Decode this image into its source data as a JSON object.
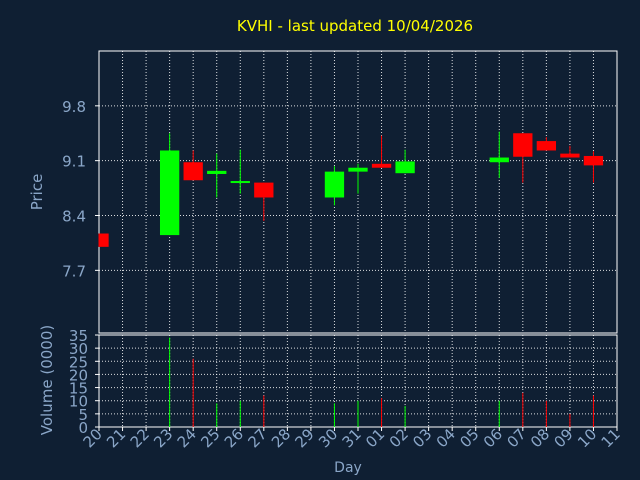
{
  "chart_data": {
    "type": "candlestick",
    "title": "KVHI - last updated 10/04/2026",
    "xlabel": "Day",
    "ylabel": "Price",
    "volume_label": "Volume (0000)",
    "x_ticks": [
      "20",
      "21",
      "22",
      "23",
      "24",
      "25",
      "26",
      "27",
      "28",
      "29",
      "30",
      "31",
      "01",
      "02",
      "03",
      "04",
      "05",
      "06",
      "07",
      "08",
      "09",
      "10",
      "11"
    ],
    "price_ticks": [
      7.7,
      8.4,
      9.1,
      9.8
    ],
    "price_ylim": [
      6.9,
      10.5
    ],
    "volume_ticks": [
      0,
      5,
      10,
      15,
      20,
      25,
      30,
      35
    ],
    "volume_ylim": [
      0,
      35
    ],
    "grid": true,
    "colors": {
      "background": "#0f1f33",
      "plot_background": "#0f1f33",
      "axis": "#ffffff",
      "grid": "#ffffff",
      "text": "#8aa6c8",
      "title": "#ffff00",
      "up": "#00ff00",
      "down": "#ff0000"
    },
    "candles": [
      {
        "day": "20",
        "open": 8.17,
        "high": 8.17,
        "low": 8.0,
        "close": 8.0,
        "volume": 0
      },
      {
        "day": "23",
        "open": 8.15,
        "high": 9.45,
        "low": 8.15,
        "close": 9.23,
        "volume": 34
      },
      {
        "day": "24",
        "open": 9.08,
        "high": 9.23,
        "low": 8.85,
        "close": 8.85,
        "volume": 26
      },
      {
        "day": "25",
        "open": 8.93,
        "high": 9.19,
        "low": 8.63,
        "close": 8.97,
        "volume": 9
      },
      {
        "day": "26",
        "open": 8.84,
        "high": 9.24,
        "low": 8.68,
        "close": 8.84,
        "volume": 10
      },
      {
        "day": "27",
        "open": 8.82,
        "high": 8.82,
        "low": 8.33,
        "close": 8.63,
        "volume": 12
      },
      {
        "day": "30",
        "open": 8.63,
        "high": 9.03,
        "low": 8.53,
        "close": 8.96,
        "volume": 9
      },
      {
        "day": "31",
        "open": 8.96,
        "high": 9.06,
        "low": 8.68,
        "close": 9.01,
        "volume": 10
      },
      {
        "day": "01",
        "open": 9.06,
        "high": 9.42,
        "low": 9.01,
        "close": 9.01,
        "volume": 11
      },
      {
        "day": "02",
        "open": 8.94,
        "high": 9.24,
        "low": 8.94,
        "close": 9.09,
        "volume": 8
      },
      {
        "day": "06",
        "open": 9.08,
        "high": 9.47,
        "low": 8.88,
        "close": 9.14,
        "volume": 10
      },
      {
        "day": "07",
        "open": 9.45,
        "high": 9.45,
        "low": 8.82,
        "close": 9.15,
        "volume": 13
      },
      {
        "day": "08",
        "open": 9.35,
        "high": 9.4,
        "low": 9.23,
        "close": 9.23,
        "volume": 10
      },
      {
        "day": "09",
        "open": 9.19,
        "high": 9.29,
        "low": 9.14,
        "close": 9.14,
        "volume": 5
      },
      {
        "day": "10",
        "open": 9.16,
        "high": 9.22,
        "low": 8.82,
        "close": 9.04,
        "volume": 12
      }
    ]
  }
}
